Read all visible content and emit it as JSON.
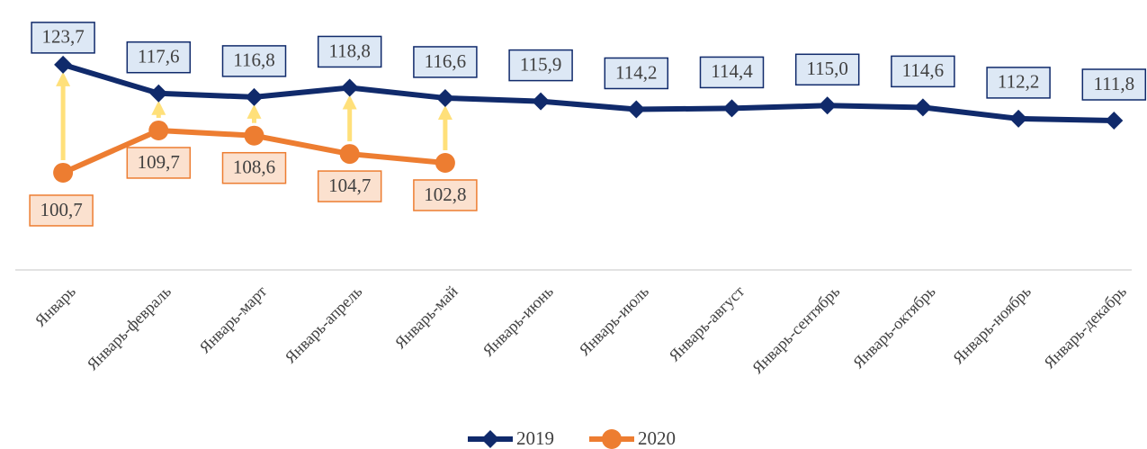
{
  "chart_data": {
    "type": "line",
    "categories": [
      "Январь",
      "Январь-февраль",
      "Январь-март",
      "Январь-апрель",
      "Январь-май",
      "Январь-июнь",
      "Январь-июль",
      "Январь-август",
      "Январь-сентябрь",
      "Январь-октябрь",
      "Январь-ноябрь",
      "Январь-декабрь"
    ],
    "series": [
      {
        "name": "2019",
        "color": "#102a6b",
        "marker": "diamond",
        "label_fill": "#dde8f5",
        "values": [
          123.7,
          117.6,
          116.8,
          118.8,
          116.6,
          115.9,
          114.2,
          114.4,
          115.0,
          114.6,
          112.2,
          111.8
        ],
        "value_labels": [
          "123,7",
          "117,6",
          "116,8",
          "118,8",
          "116,6",
          "115,9",
          "114,2",
          "114,4",
          "115,0",
          "114,6",
          "112,2",
          "111,8"
        ]
      },
      {
        "name": "2020",
        "color": "#ed7d31",
        "marker": "circle",
        "label_fill": "#fbe1cf",
        "values": [
          100.7,
          109.7,
          108.6,
          104.7,
          102.8,
          null,
          null,
          null,
          null,
          null,
          null,
          null
        ],
        "value_labels": [
          "100,7",
          "109,7",
          "108,6",
          "104,7",
          "102,8",
          null,
          null,
          null,
          null,
          null,
          null,
          null
        ]
      }
    ],
    "ylim": [
      80,
      130
    ],
    "arrow_color": "#ffe07a",
    "legend": "bottom"
  }
}
